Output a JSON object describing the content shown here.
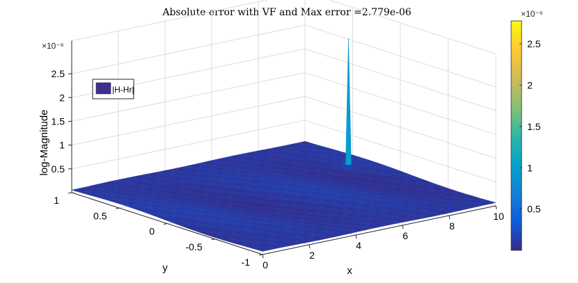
{
  "chart_data": {
    "type": "surface",
    "title": "Absolute error with VF and Max error =2.779e-06",
    "xlabel": "x",
    "ylabel": "y",
    "zlabel": "log-Magnitude",
    "xlim": [
      0,
      10
    ],
    "ylim": [
      -1,
      1
    ],
    "zlim": [
      0,
      2.779e-06
    ],
    "x_ticks": [
      "0",
      "2",
      "4",
      "6",
      "8",
      "10"
    ],
    "y_ticks": [
      "-1",
      "-0.5",
      "0",
      "0.5",
      "1"
    ],
    "z_ticks": [
      "0.5",
      "1",
      "1.5",
      "2",
      "2.5"
    ],
    "z_exponent_label": "×10⁻⁶",
    "grid": true,
    "legend": {
      "position": "top-left",
      "entry": "|H-Hr|",
      "color": "#3d2f8f"
    },
    "peak": {
      "x": 9.0,
      "y": 0.3,
      "z": 2.779e-06
    },
    "colorbar": {
      "colormap": "parula",
      "ticks": [
        "0.5",
        "1",
        "1.5",
        "2",
        "2.5"
      ],
      "exponent_label": "×10⁻⁶",
      "stops": [
        "#352a87",
        "#0f5cdd",
        "#1481d6",
        "#06a4ca",
        "#2eb7a4",
        "#87bf77",
        "#d1bb59",
        "#fec832",
        "#f9fb0e"
      ]
    }
  }
}
